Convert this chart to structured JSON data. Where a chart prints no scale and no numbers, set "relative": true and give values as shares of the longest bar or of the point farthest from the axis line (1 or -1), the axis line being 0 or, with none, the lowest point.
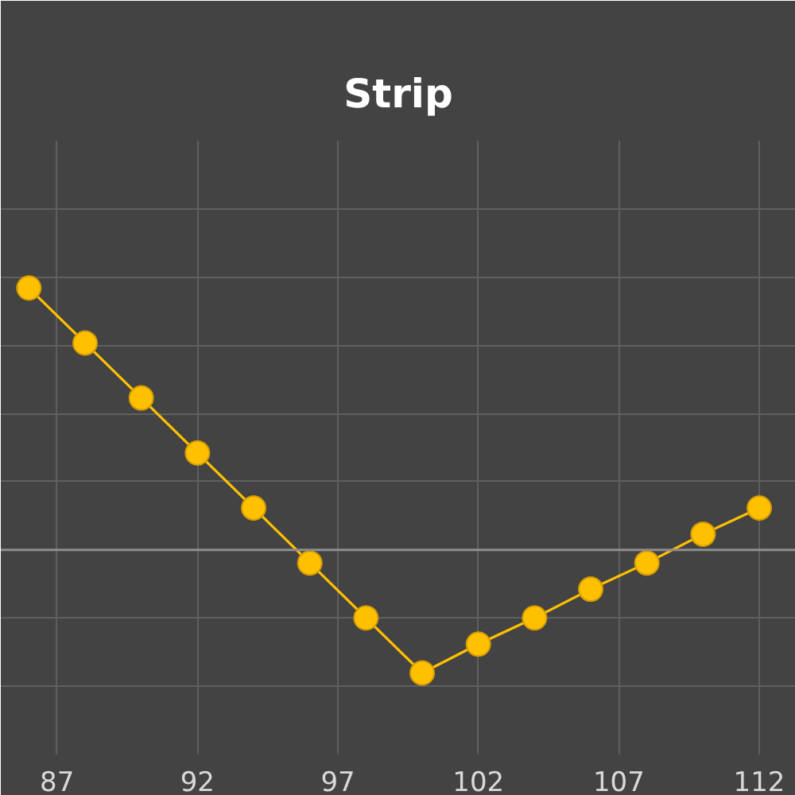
{
  "chart_data": {
    "type": "line",
    "title": "Strip",
    "x": [
      86,
      88,
      90,
      92,
      94,
      96,
      98,
      100,
      102,
      104,
      106,
      108,
      110,
      112
    ],
    "series": [
      {
        "color": "#ffc000",
        "values": [
          1.0,
          0.79,
          0.58,
          0.37,
          0.16,
          -0.05,
          -0.26,
          -0.47,
          -0.36,
          -0.26,
          -0.15,
          -0.05,
          0.06,
          0.16
        ]
      }
    ],
    "relative": true,
    "xlim": [
      85,
      113.3
    ],
    "xticks": [
      87,
      92,
      97,
      102,
      107,
      112
    ],
    "grid": true,
    "marker": "circle",
    "line_style": "solid",
    "tick_labels": "x"
  }
}
